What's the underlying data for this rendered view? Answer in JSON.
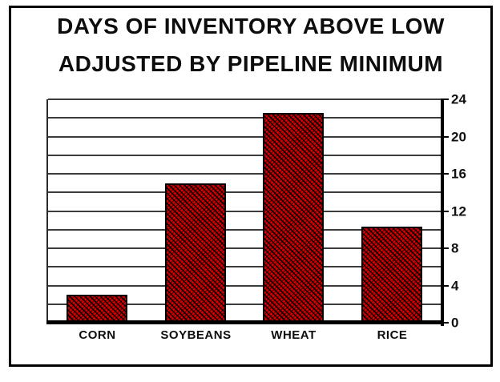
{
  "title": {
    "line1": "DAYS OF INVENTORY ABOVE LOW",
    "line2": "ADJUSTED BY PIPELINE MINIMUM"
  },
  "colors": {
    "bar_fill": "#d80000",
    "bar_hatch": "#000000",
    "frame_border": "#000000",
    "gridline": "#3c3c3c",
    "text": "#0d0d0d"
  },
  "chart_data": {
    "type": "bar",
    "title": "DAYS OF INVENTORY ABOVE LOW ADJUSTED BY PIPELINE MINIMUM",
    "categories": [
      "CORN",
      "SOYBEANS",
      "WHEAT",
      "RICE"
    ],
    "values": [
      3,
      15,
      22.5,
      10.3
    ],
    "xlabel": "",
    "ylabel": "",
    "ylim": [
      0,
      24
    ],
    "yticks": [
      0,
      4,
      8,
      12,
      16,
      20,
      24
    ],
    "gridline_step": 2,
    "y_axis_side": "right",
    "grid": true,
    "legend": false,
    "bar_pattern": "red-black-diagonal-hatch"
  }
}
